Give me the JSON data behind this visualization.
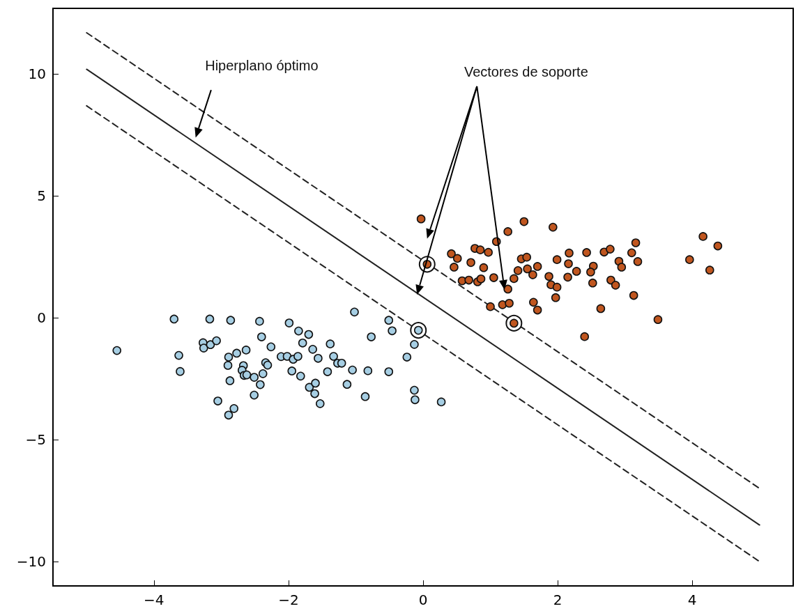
{
  "chart_data": {
    "type": "scatter",
    "annotations": [
      "Hiperplano óptimo",
      "Vectores de soporte"
    ],
    "xlim": [
      -5.5,
      5.5
    ],
    "ylim": [
      -11,
      12.7
    ],
    "xticks": [
      {
        "value": -4,
        "label": "−4"
      },
      {
        "value": -2,
        "label": "−2"
      },
      0,
      2,
      4
    ],
    "yticks": [
      {
        "value": -10,
        "label": "−10"
      },
      {
        "value": -5,
        "label": "−5"
      },
      0,
      5,
      10
    ],
    "grid": false,
    "series": [
      {
        "marker": "circle",
        "color": "#ffffff",
        "x": [
          -0.07,
          0.06,
          1.35
        ],
        "values": [
          -0.51,
          2.2,
          -0.22
        ]
      },
      {
        "marker": "circle",
        "color": "#a6cee3",
        "x": [
          -4.55,
          -3.7,
          -3.17,
          -2.86,
          -2.43,
          -1.99,
          -1.85,
          -1.7,
          -2.4,
          -1.79,
          -2.26,
          -1.64,
          -1.56,
          -3.27,
          -3.26,
          -3.16,
          -3.07,
          -3.63,
          -3.61,
          -2.63,
          -2.77,
          -2.89,
          -2.9,
          -2.67,
          -2.69,
          -2.66,
          -2.62,
          -2.51,
          -2.38,
          -2.34,
          -2.31,
          -2.42,
          -2.51,
          -2.87,
          -3.05,
          -2.81,
          -2.89,
          -2.11,
          -2.02,
          -1.93,
          -1.86,
          -1.95,
          -1.82,
          -1.69,
          -1.6,
          -1.61,
          -1.53,
          -1.38,
          -1.33,
          -1.27,
          -1.21,
          -1.42,
          -1.05,
          -0.82,
          -0.51,
          -1.13,
          -0.86,
          -1.02,
          -0.51,
          -0.46,
          -0.77,
          -0.07,
          -0.13,
          -0.24,
          -0.13,
          -0.12,
          0.27
        ],
        "values": [
          -1.34,
          -0.05,
          -0.05,
          -0.1,
          -0.14,
          -0.21,
          -0.54,
          -0.68,
          -0.78,
          -1.03,
          -1.19,
          -1.29,
          -1.66,
          -1.02,
          -1.24,
          -1.1,
          -0.94,
          -1.54,
          -2.2,
          -1.32,
          -1.45,
          -1.61,
          -1.95,
          -1.96,
          -2.15,
          -2.36,
          -2.34,
          -2.44,
          -2.29,
          -1.84,
          -1.94,
          -2.74,
          -3.17,
          -2.58,
          -3.41,
          -3.72,
          -3.99,
          -1.59,
          -1.58,
          -1.7,
          -1.58,
          -2.18,
          -2.39,
          -2.85,
          -2.68,
          -3.11,
          -3.52,
          -1.07,
          -1.58,
          -1.86,
          -1.86,
          -2.21,
          -2.14,
          -2.17,
          -2.21,
          -2.73,
          -3.23,
          0.24,
          -0.1,
          -0.53,
          -0.78,
          -0.51,
          -1.09,
          -1.61,
          -2.97,
          -3.36,
          -3.45
        ]
      },
      {
        "marker": "circle",
        "color": "#c0561f",
        "x": [
          -0.03,
          0.06,
          0.42,
          0.51,
          0.46,
          0.71,
          0.77,
          0.85,
          0.97,
          0.9,
          1.09,
          1.26,
          1.5,
          1.93,
          0.58,
          0.68,
          0.81,
          0.86,
          1.05,
          1.26,
          1.0,
          1.18,
          1.28,
          1.35,
          1.46,
          1.54,
          1.41,
          1.35,
          1.55,
          1.63,
          1.7,
          1.64,
          1.7,
          1.87,
          1.9,
          1.99,
          1.97,
          1.99,
          2.16,
          2.17,
          2.15,
          2.28,
          2.43,
          2.69,
          2.78,
          2.53,
          2.49,
          2.52,
          2.79,
          2.86,
          2.91,
          2.95,
          3.1,
          3.16,
          3.19,
          3.13,
          2.64,
          3.49,
          2.4,
          4.16,
          4.38,
          3.96,
          4.26
        ],
        "values": [
          4.06,
          2.2,
          2.63,
          2.44,
          2.08,
          2.27,
          2.85,
          2.79,
          2.69,
          2.06,
          3.13,
          3.54,
          3.95,
          3.72,
          1.52,
          1.55,
          1.48,
          1.6,
          1.65,
          1.18,
          0.46,
          0.54,
          0.6,
          -0.22,
          2.42,
          2.49,
          1.94,
          1.61,
          2.01,
          1.77,
          2.11,
          0.64,
          0.32,
          1.7,
          1.36,
          1.26,
          0.83,
          2.39,
          2.22,
          2.66,
          1.67,
          1.91,
          2.68,
          2.7,
          2.82,
          2.12,
          1.88,
          1.43,
          1.55,
          1.34,
          2.32,
          2.08,
          2.67,
          3.08,
          2.31,
          0.92,
          0.38,
          -0.07,
          -0.77,
          3.34,
          2.95,
          2.39,
          1.96
        ]
      },
      {
        "type": "line",
        "marker": "none",
        "color": "#222222",
        "line_style": "dashed",
        "x": [
          -5,
          5
        ],
        "values": [
          11.7,
          -7.0
        ]
      },
      {
        "type": "line",
        "marker": "none",
        "color": "#222222",
        "line_style": "solid",
        "x": [
          -5,
          5
        ],
        "values": [
          10.2,
          -8.5
        ]
      },
      {
        "type": "line",
        "marker": "none",
        "color": "#222222",
        "line_style": "dashed",
        "x": [
          -5,
          5
        ],
        "values": [
          8.7,
          -10.0
        ]
      }
    ]
  }
}
